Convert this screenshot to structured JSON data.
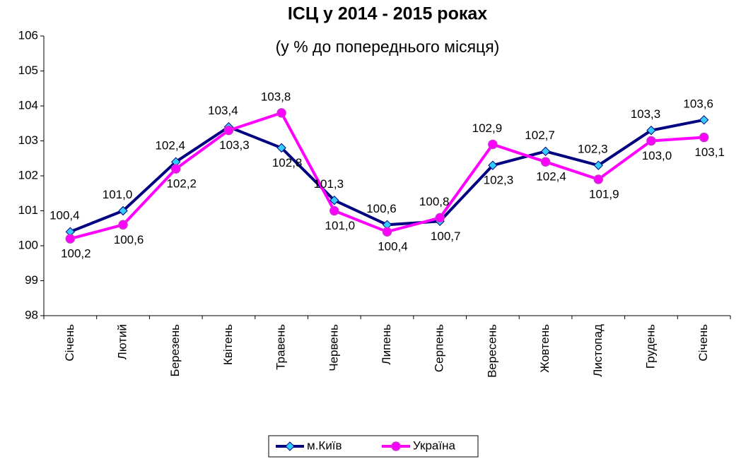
{
  "chart_data": {
    "type": "line",
    "title": "ІСЦ у 2014 - 2015 роках",
    "subtitle": "(у %  до попереднього місяця)",
    "categories": [
      "Січень",
      "Лютий",
      "Березень",
      "Квітень",
      "Травень",
      "Червень",
      "Липень",
      "Серпень",
      "Вересень",
      "Жовтень",
      "Листопад",
      "Грудень",
      "Січень"
    ],
    "series": [
      {
        "name": "м.Київ",
        "color": "#000080",
        "marker_color": "#33ccff",
        "values": [
          100.4,
          101.0,
          102.4,
          103.4,
          102.8,
          101.3,
          100.6,
          100.7,
          102.3,
          102.7,
          102.3,
          103.3,
          103.6
        ],
        "value_labels": [
          "100,4",
          "101,0",
          "102,4",
          "103,4",
          "102,8",
          "101,3",
          "100,6",
          "100,7",
          "102,3",
          "102,7",
          "102,3",
          "103,3",
          "103,6"
        ]
      },
      {
        "name": "Україна",
        "color": "#ff00ff",
        "marker_color": "#cc33cc",
        "values": [
          100.2,
          100.6,
          102.2,
          103.3,
          103.8,
          101.0,
          100.4,
          100.8,
          102.9,
          102.4,
          101.9,
          103.0,
          103.1
        ],
        "value_labels": [
          "100,2",
          "100,6",
          "102,2",
          "103,3",
          "103,8",
          "101,0",
          "100,4",
          "100,8",
          "102,9",
          "102,4",
          "101,9",
          "103,0",
          "103,1"
        ]
      }
    ],
    "ylim": [
      98,
      106
    ],
    "yticks": [
      98,
      99,
      100,
      101,
      102,
      103,
      104,
      105,
      106
    ],
    "grid": false,
    "legend": "bottom"
  }
}
